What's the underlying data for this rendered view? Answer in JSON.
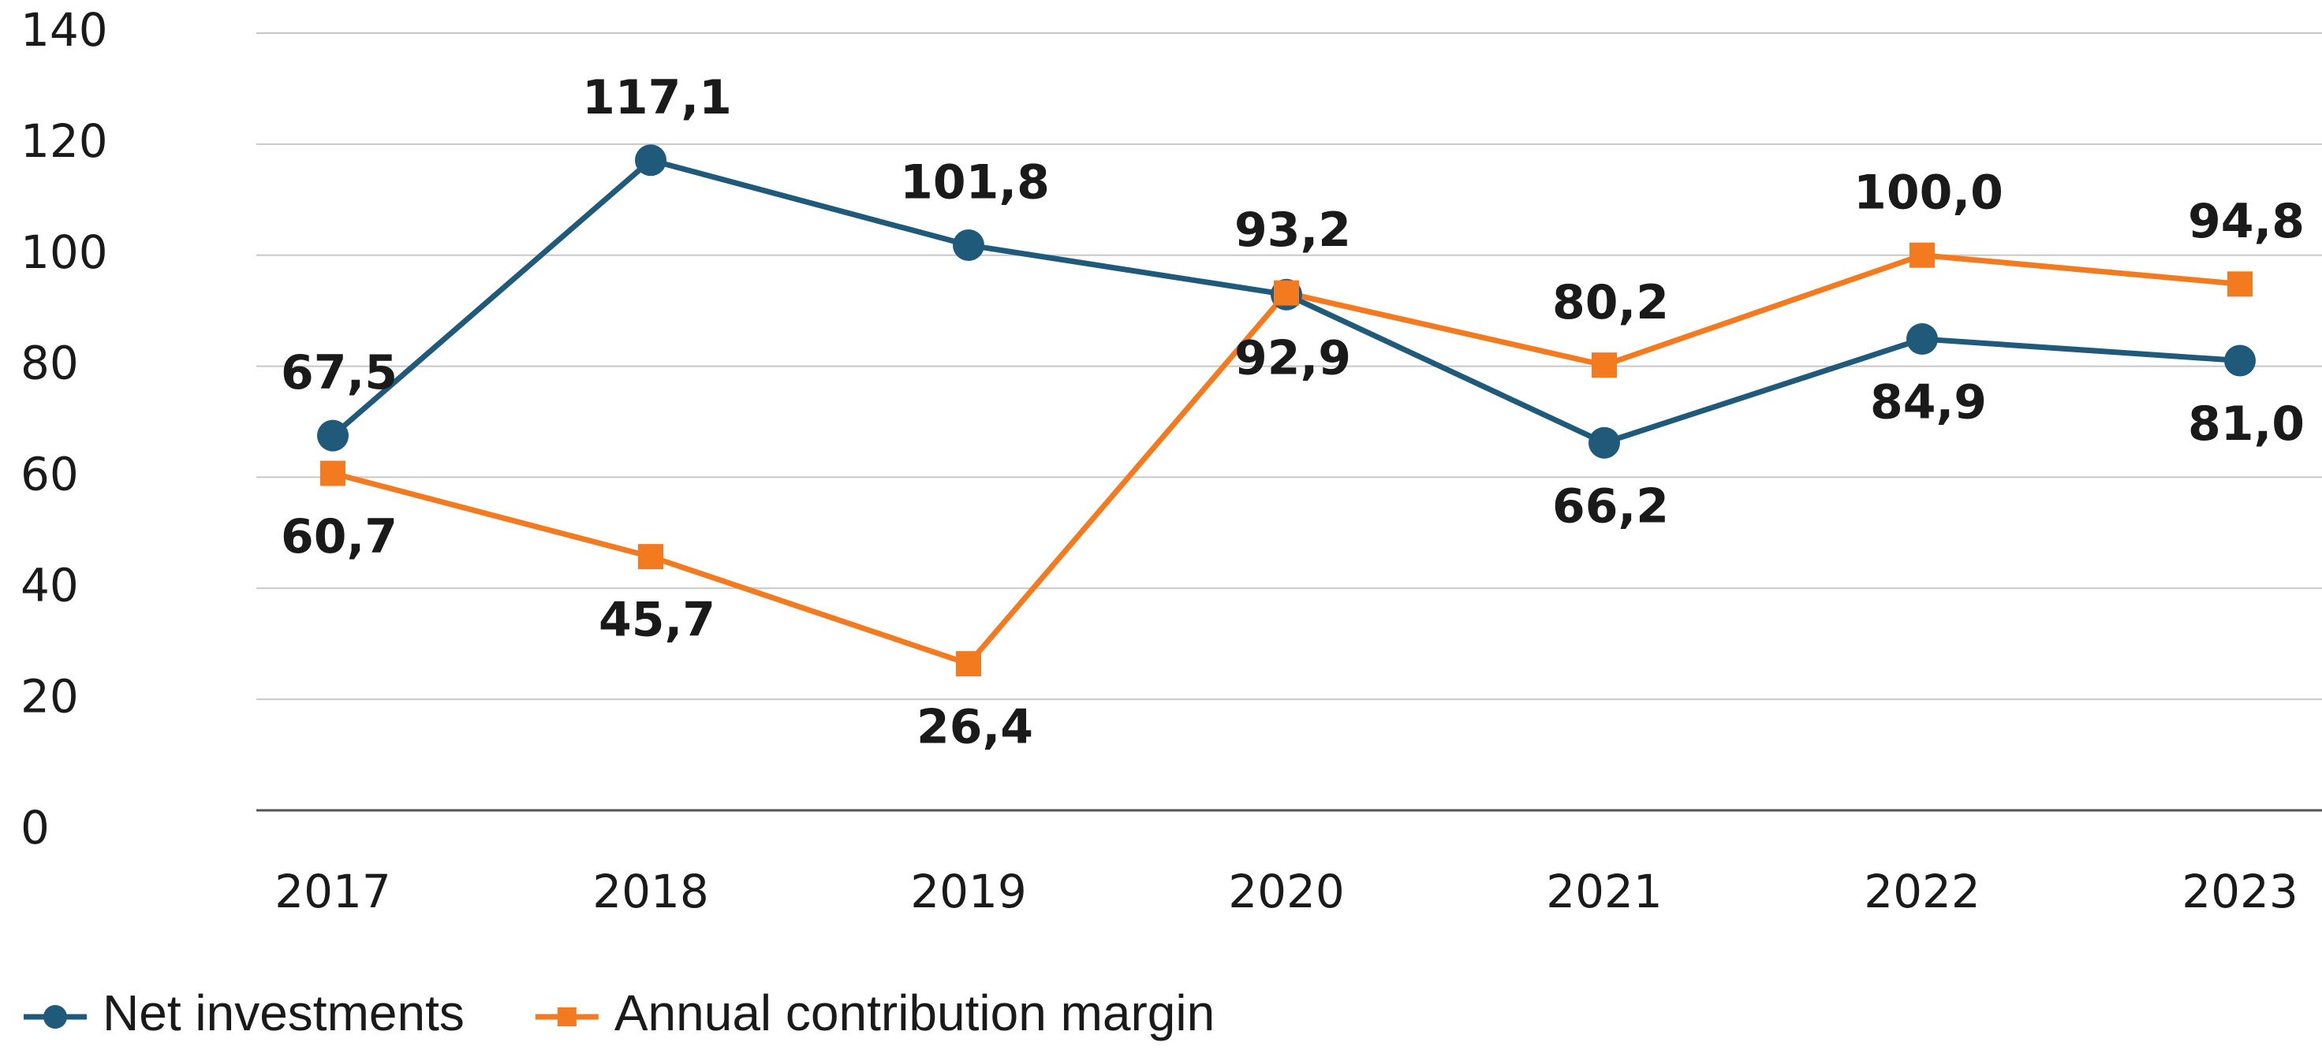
{
  "chart_data": {
    "type": "line",
    "categories": [
      "2017",
      "2018",
      "2019",
      "2020",
      "2021",
      "2022",
      "2023"
    ],
    "series": [
      {
        "name": "Net investments",
        "color": "#1f5a7a",
        "marker": "circle",
        "values": [
          67.5,
          117.1,
          101.8,
          92.9,
          66.2,
          84.9,
          81.0
        ],
        "value_labels": [
          "67,5",
          "117,1",
          "101,8",
          "92,9",
          "66,2",
          "84,9",
          "81,0"
        ]
      },
      {
        "name": "Annual contribution margin",
        "color": "#f47a20",
        "marker": "square",
        "values": [
          60.7,
          45.7,
          26.4,
          93.2,
          80.2,
          100.0,
          94.8
        ],
        "value_labels": [
          "60,7",
          "45,7",
          "26,4",
          "93,2",
          "80,2",
          "100,0",
          "94,8"
        ]
      }
    ],
    "ylim": [
      0,
      140
    ],
    "yticks": [
      0,
      20,
      40,
      60,
      80,
      100,
      120,
      140
    ],
    "grid": true,
    "legend": "bottom"
  }
}
